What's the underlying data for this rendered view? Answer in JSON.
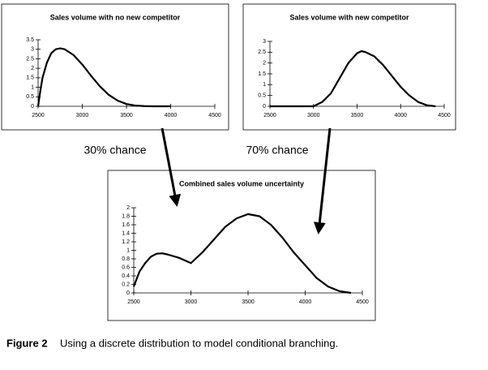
{
  "chart_data": [
    {
      "type": "line",
      "title": "Sales volume with no new competitor",
      "color": "#000000",
      "x": [
        2500,
        2525,
        2550,
        2600,
        2650,
        2700,
        2750,
        2800,
        2900,
        3000,
        3100,
        3200,
        3300,
        3400,
        3500,
        3600,
        3700,
        3800,
        3900,
        4000
      ],
      "values": [
        0,
        0.8,
        1.5,
        2.3,
        2.8,
        3.0,
        3.05,
        3.0,
        2.7,
        2.2,
        1.6,
        1.05,
        0.6,
        0.3,
        0.12,
        0.04,
        0.01,
        0,
        0,
        0
      ],
      "xlim": [
        2500,
        4500
      ],
      "xticks": [
        2500,
        3000,
        3500,
        4000,
        4500
      ],
      "ylim": [
        0,
        3.5
      ],
      "yticks": [
        0,
        0.5,
        1,
        1.5,
        2,
        2.5,
        3,
        3.5
      ]
    },
    {
      "type": "line",
      "title": "Sales volume with new competitor",
      "color": "#000000",
      "x": [
        2500,
        3000,
        3100,
        3200,
        3300,
        3400,
        3500,
        3550,
        3600,
        3700,
        3800,
        3900,
        4000,
        4100,
        4200,
        4300,
        4400
      ],
      "values": [
        0,
        0,
        0.2,
        0.6,
        1.3,
        2.0,
        2.45,
        2.55,
        2.5,
        2.3,
        1.9,
        1.4,
        0.9,
        0.5,
        0.2,
        0.05,
        0
      ],
      "xlim": [
        2500,
        4500
      ],
      "xticks": [
        2500,
        3000,
        3500,
        4000,
        4500
      ],
      "ylim": [
        0,
        3
      ],
      "yticks": [
        0,
        0.5,
        1,
        1.5,
        2,
        2.5,
        3
      ]
    },
    {
      "type": "line",
      "title": "Combined sales volume uncertainty",
      "color": "#000000",
      "x": [
        2500,
        2550,
        2600,
        2650,
        2700,
        2750,
        2800,
        2900,
        3000,
        3100,
        3200,
        3300,
        3400,
        3500,
        3600,
        3700,
        3800,
        3900,
        4000,
        4100,
        4200,
        4300,
        4400
      ],
      "values": [
        0.15,
        0.5,
        0.7,
        0.85,
        0.92,
        0.93,
        0.9,
        0.82,
        0.7,
        0.95,
        1.25,
        1.55,
        1.75,
        1.85,
        1.8,
        1.6,
        1.3,
        0.95,
        0.65,
        0.35,
        0.15,
        0.04,
        0
      ],
      "xlim": [
        2500,
        4500
      ],
      "xticks": [
        2500,
        3000,
        3500,
        4000,
        4500
      ],
      "ylim": [
        0,
        2
      ],
      "yticks": [
        0,
        0.2,
        0.4,
        0.6,
        0.8,
        1,
        1.2,
        1.4,
        1.6,
        1.8,
        2
      ]
    }
  ],
  "annotations": [
    "30% chance",
    "70% chance"
  ],
  "caption": {
    "label": "Figure 2",
    "text": "Using a discrete distribution to model conditional branching."
  }
}
